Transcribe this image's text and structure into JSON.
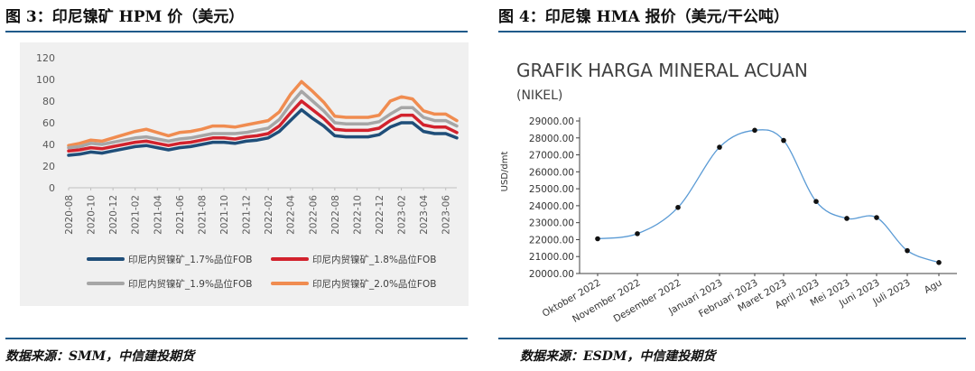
{
  "left_title": "图 3：印尼镍矿 HPM 价（美元）",
  "right_title": "图 4：印尼镍 HMA 报价（美元/干公吨）",
  "left_source": "数据来源：SMM，中信建投期货",
  "right_source": "数据来源：ESDM，中信建投期货",
  "colors": {
    "rule": "#1f5a8a",
    "s17": "#1f4e79",
    "s18": "#d2222d",
    "s19": "#a6a6a6",
    "s20": "#f08c50",
    "hma_line": "#5b9bd5"
  },
  "chart_data": [
    {
      "type": "line",
      "ylim": [
        0,
        120
      ],
      "yticks": [
        0,
        20,
        40,
        60,
        80,
        100,
        120
      ],
      "x": [
        "2020-08",
        "2020-09",
        "2020-10",
        "2020-11",
        "2020-12",
        "2021-01",
        "2021-02",
        "2021-03",
        "2021-04",
        "2021-05",
        "2021-06",
        "2021-07",
        "2021-08",
        "2021-09",
        "2021-10",
        "2021-11",
        "2021-12",
        "2022-01",
        "2022-02",
        "2022-03",
        "2022-04",
        "2022-05",
        "2022-06",
        "2022-07",
        "2022-08",
        "2022-09",
        "2022-10",
        "2022-11",
        "2022-12",
        "2023-01",
        "2023-02",
        "2023-03",
        "2023-04",
        "2023-05",
        "2023-06",
        "2023-07"
      ],
      "xtick_labels": [
        "2020-08",
        "2020-10",
        "2020-12",
        "2021-02",
        "2021-04",
        "2021-06",
        "2021-08",
        "2021-10",
        "2021-12",
        "2022-02",
        "2022-04",
        "2022-06",
        "2022-08",
        "2022-10",
        "2022-12",
        "2023-02",
        "2023-04",
        "2023-06"
      ],
      "series": [
        {
          "name": "印尼内贸镍矿_1.7%品位FOB",
          "color_key": "s17",
          "values": [
            30,
            31,
            33,
            32,
            34,
            36,
            38,
            39,
            37,
            35,
            37,
            38,
            40,
            42,
            42,
            41,
            43,
            44,
            46,
            52,
            62,
            72,
            64,
            57,
            48,
            47,
            47,
            47,
            49,
            56,
            60,
            60,
            52,
            50,
            50,
            46
          ]
        },
        {
          "name": "印尼内贸镍矿_1.8%品位FOB",
          "color_key": "s18",
          "values": [
            34,
            35,
            37,
            36,
            38,
            40,
            42,
            43,
            41,
            39,
            41,
            42,
            44,
            46,
            46,
            45,
            47,
            48,
            50,
            57,
            69,
            80,
            72,
            64,
            54,
            53,
            53,
            53,
            55,
            62,
            67,
            67,
            58,
            56,
            56,
            51
          ]
        },
        {
          "name": "印尼内贸镍矿_1.9%品位FOB",
          "color_key": "s19",
          "values": [
            37,
            38,
            41,
            40,
            42,
            44,
            46,
            47,
            45,
            43,
            45,
            46,
            48,
            50,
            50,
            50,
            51,
            53,
            55,
            63,
            77,
            89,
            80,
            71,
            60,
            59,
            59,
            59,
            61,
            68,
            74,
            74,
            65,
            62,
            62,
            57
          ]
        },
        {
          "name": "印尼内贸镍矿_2.0%品位FOB",
          "color_key": "s20",
          "values": [
            39,
            41,
            44,
            43,
            46,
            49,
            52,
            54,
            51,
            48,
            51,
            52,
            54,
            57,
            57,
            56,
            58,
            60,
            62,
            70,
            86,
            98,
            89,
            79,
            66,
            65,
            65,
            65,
            67,
            80,
            84,
            82,
            71,
            68,
            68,
            62
          ]
        }
      ]
    },
    {
      "type": "line",
      "title": "GRAFIK HARGA MINERAL ACUAN",
      "subtitle": "(NIKEL)",
      "ylabel": "USD/dmt",
      "ylim": [
        20000,
        29000
      ],
      "yticks": [
        "20000.00",
        "21000.00",
        "22000.00",
        "23000.00",
        "24000.00",
        "25000.00",
        "26000.00",
        "27000.00",
        "28000.00",
        "29000.00"
      ],
      "categories": [
        "Oktober 2022",
        "November 2022",
        "Desember 2022",
        "Januari 2023",
        "Februari 2023",
        "Maret 2023",
        "April 2023",
        "Mei 2023",
        "Juni 2023",
        "Juli 2023",
        "Agu"
      ],
      "values": [
        22050,
        22350,
        23900,
        27450,
        28450,
        27850,
        24250,
        23250,
        23300,
        21350,
        20650
      ]
    }
  ]
}
